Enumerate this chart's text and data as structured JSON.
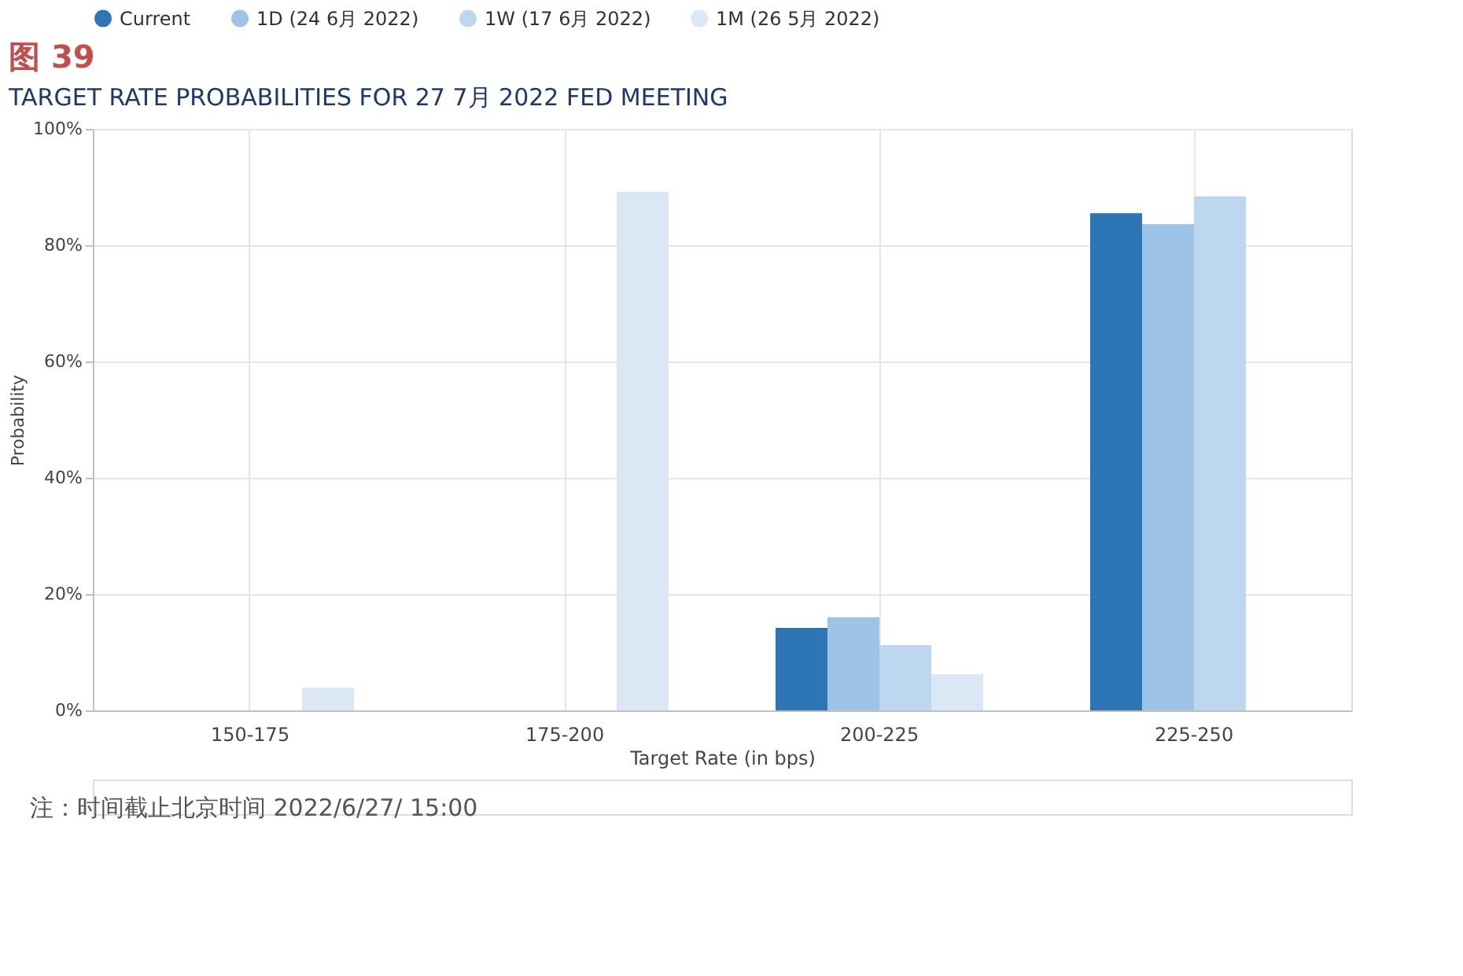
{
  "chart_data": {
    "type": "bar",
    "title": "图 39",
    "subtitle": "TARGET RATE PROBABILITIES FOR 27 7月 2022 FED MEETING",
    "xlabel": "Target Rate (in bps)",
    "ylabel": "Probability",
    "categories": [
      "150-175",
      "175-200",
      "200-225",
      "225-250"
    ],
    "series": [
      {
        "name": "Current",
        "color": "#2e75b6",
        "values": [
          0,
          0,
          14.2,
          85.5
        ]
      },
      {
        "name": "1D (24 6月 2022)",
        "color": "#9dc3e6",
        "values": [
          0,
          0,
          16.0,
          83.6
        ]
      },
      {
        "name": "1W (17 6月 2022)",
        "color": "#bdd7ee",
        "values": [
          0,
          0,
          11.2,
          88.4
        ]
      },
      {
        "name": "1M (26 5月 2022)",
        "color": "#dae8f5",
        "values": [
          3.9,
          89.2,
          6.2,
          0
        ]
      }
    ],
    "ylim": [
      0,
      100
    ],
    "yticks": [
      {
        "value": 0,
        "label": "0%"
      },
      {
        "value": 20,
        "label": "20%"
      },
      {
        "value": 40,
        "label": "40%"
      },
      {
        "value": 60,
        "label": "60%"
      },
      {
        "value": 80,
        "label": "80%"
      },
      {
        "value": 100,
        "label": "100%"
      }
    ],
    "grid": true,
    "legend": "top",
    "annotations": [
      "注：时间截止北京时间 2022/6/27/ 15:00"
    ]
  }
}
